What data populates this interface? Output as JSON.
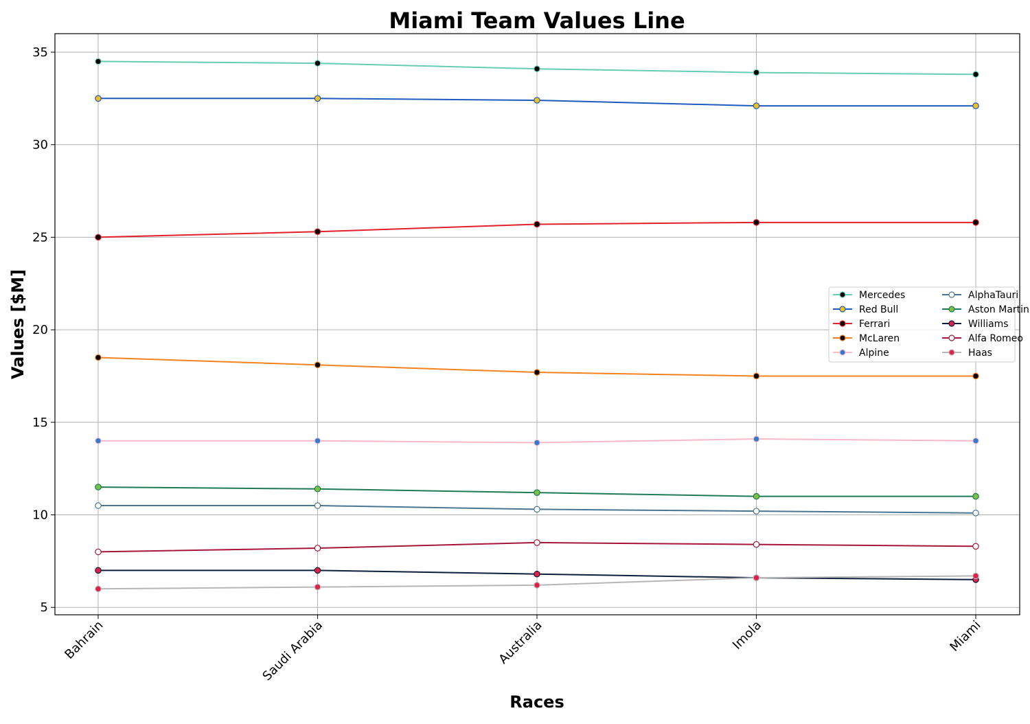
{
  "chart_data": {
    "type": "line",
    "title": "Miami Team Values Line",
    "xlabel": "Races",
    "ylabel": "Values [$M]",
    "categories": [
      "Bahrain",
      "Saudi Arabia",
      "Australia",
      "Imola",
      "Miami"
    ],
    "ylim": [
      4.6,
      36.0
    ],
    "yticks": [
      5,
      10,
      15,
      20,
      25,
      30,
      35
    ],
    "grid": true,
    "legend_position": "center-right",
    "series": [
      {
        "name": "Mercedes",
        "values": [
          34.5,
          34.4,
          34.1,
          33.9,
          33.8
        ],
        "color": "#66cdb4",
        "marker_fill": "#000000",
        "marker_edge": "#66cdb4"
      },
      {
        "name": "Red Bull",
        "values": [
          32.5,
          32.5,
          32.4,
          32.1,
          32.1
        ],
        "color": "#1f5bbf",
        "marker_fill": "#f0c020",
        "marker_edge": "#1f5bbf"
      },
      {
        "name": "Ferrari",
        "values": [
          25.0,
          25.3,
          25.7,
          25.8,
          25.8
        ],
        "color": "#e3202a",
        "marker_fill": "#000000",
        "marker_edge": "#e3202a"
      },
      {
        "name": "McLaren",
        "values": [
          18.5,
          18.1,
          17.7,
          17.5,
          17.5
        ],
        "color": "#f5821f",
        "marker_fill": "#000000",
        "marker_edge": "#f5821f"
      },
      {
        "name": "Alpine",
        "values": [
          14.0,
          14.0,
          13.9,
          14.1,
          14.0
        ],
        "color": "#f9b8c8",
        "marker_fill": "#2f7bd0",
        "marker_edge": "#f9b8c8"
      },
      {
        "name": "AlphaTauri",
        "values": [
          10.5,
          10.5,
          10.3,
          10.2,
          10.1
        ],
        "color": "#4a7592",
        "marker_fill": "#ffffff",
        "marker_edge": "#4a7592"
      },
      {
        "name": "Aston Martin",
        "values": [
          11.5,
          11.4,
          11.2,
          11.0,
          11.0
        ],
        "color": "#1f7a55",
        "marker_fill": "#7ac143",
        "marker_edge": "#1f7a55"
      },
      {
        "name": "Williams",
        "values": [
          7.0,
          7.0,
          6.8,
          6.6,
          6.5
        ],
        "color": "#0d1f3c",
        "marker_fill": "#e0204a",
        "marker_edge": "#0d1f3c"
      },
      {
        "name": "Alfa Romeo",
        "values": [
          8.0,
          8.2,
          8.5,
          8.4,
          8.3
        ],
        "color": "#a5163a",
        "marker_fill": "#ffffff",
        "marker_edge": "#a5163a"
      },
      {
        "name": "Haas",
        "values": [
          6.0,
          6.1,
          6.2,
          6.6,
          6.7
        ],
        "color": "#b6b6b6",
        "marker_fill": "#e0204a",
        "marker_edge": "#b6b6b6"
      }
    ]
  }
}
